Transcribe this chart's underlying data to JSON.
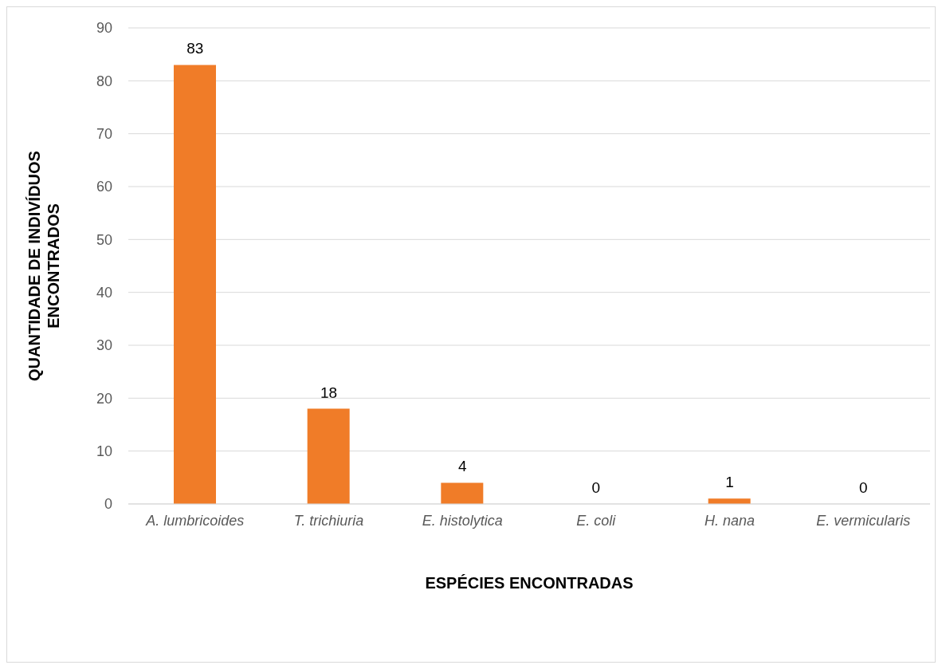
{
  "chart_data": {
    "type": "bar",
    "xlabel": "ESPÉCIES ENCONTRADAS",
    "ylabel": "QUANTIDADE DE INDIVÍDUOS ENCONTRADOS",
    "categories": [
      "A. lumbricoides",
      "T. trichiuria",
      "E. histolytica",
      "E. coli",
      "H. nana",
      "E. vermicularis"
    ],
    "values": [
      83,
      18,
      4,
      0,
      1,
      0
    ],
    "color": "#f07c28",
    "ylim": [
      0,
      90
    ],
    "yticks": [
      0,
      10,
      20,
      30,
      40,
      50,
      60,
      70,
      80,
      90
    ],
    "grid": "y",
    "data_labels": true
  }
}
